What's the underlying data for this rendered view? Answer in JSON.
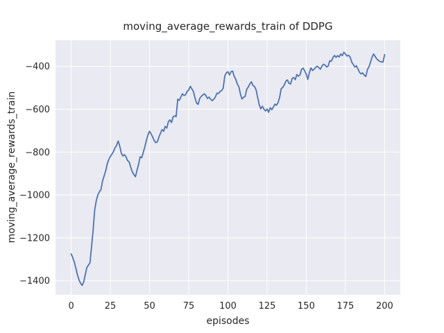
{
  "chart_data": {
    "type": "line",
    "title": "moving_average_rewards_train of DDPG",
    "xlabel": "episodes",
    "ylabel": "moving_average_rewards_train",
    "xlim": [
      -10,
      210
    ],
    "ylim": [
      -1466,
      -278
    ],
    "grid": true,
    "legend_position": "none",
    "style": "seaborn-darkgrid",
    "colors": {
      "line": "#4c72b0",
      "axes_background": "#eaeaf2",
      "grid": "#ffffff",
      "text": "#262626",
      "figure_background": "#ffffff"
    },
    "x_ticks": {
      "values": [
        0,
        25,
        50,
        75,
        100,
        125,
        150,
        175,
        200
      ],
      "labels": [
        "0",
        "25",
        "50",
        "75",
        "100",
        "125",
        "150",
        "175",
        "200"
      ]
    },
    "y_ticks": {
      "values": [
        -400,
        -600,
        -800,
        -1000,
        -1200,
        -1400
      ],
      "labels": [
        "−400",
        "−600",
        "−800",
        "−1000",
        "−1200",
        "−1400"
      ]
    },
    "series": [
      {
        "name": "moving_average_rewards_train",
        "color": "#4c72b0",
        "points": [
          [
            0,
            -1275
          ],
          [
            1,
            -1292
          ],
          [
            2,
            -1313
          ],
          [
            3,
            -1342
          ],
          [
            4,
            -1372
          ],
          [
            5,
            -1396
          ],
          [
            6,
            -1412
          ],
          [
            7,
            -1422
          ],
          [
            8,
            -1405
          ],
          [
            9,
            -1372
          ],
          [
            10,
            -1338
          ],
          [
            11,
            -1328
          ],
          [
            12,
            -1316
          ],
          [
            13,
            -1240
          ],
          [
            14,
            -1165
          ],
          [
            15,
            -1070
          ],
          [
            16,
            -1028
          ],
          [
            17,
            -1000
          ],
          [
            18,
            -985
          ],
          [
            19,
            -975
          ],
          [
            20,
            -935
          ],
          [
            21,
            -912
          ],
          [
            22,
            -888
          ],
          [
            23,
            -855
          ],
          [
            24,
            -835
          ],
          [
            25,
            -820
          ],
          [
            26,
            -810
          ],
          [
            27,
            -797
          ],
          [
            28,
            -780
          ],
          [
            29,
            -768
          ],
          [
            30,
            -748
          ],
          [
            31,
            -772
          ],
          [
            32,
            -805
          ],
          [
            33,
            -818
          ],
          [
            34,
            -812
          ],
          [
            35,
            -822
          ],
          [
            36,
            -840
          ],
          [
            37,
            -845
          ],
          [
            38,
            -870
          ],
          [
            39,
            -892
          ],
          [
            40,
            -905
          ],
          [
            41,
            -915
          ],
          [
            42,
            -885
          ],
          [
            43,
            -857
          ],
          [
            44,
            -822
          ],
          [
            45,
            -826
          ],
          [
            46,
            -802
          ],
          [
            47,
            -775
          ],
          [
            48,
            -745
          ],
          [
            49,
            -720
          ],
          [
            50,
            -703
          ],
          [
            51,
            -715
          ],
          [
            52,
            -730
          ],
          [
            53,
            -746
          ],
          [
            54,
            -756
          ],
          [
            55,
            -752
          ],
          [
            56,
            -730
          ],
          [
            57,
            -711
          ],
          [
            58,
            -695
          ],
          [
            59,
            -703
          ],
          [
            60,
            -680
          ],
          [
            61,
            -688
          ],
          [
            62,
            -658
          ],
          [
            63,
            -650
          ],
          [
            64,
            -662
          ],
          [
            65,
            -636
          ],
          [
            66,
            -631
          ],
          [
            67,
            -634
          ],
          [
            68,
            -553
          ],
          [
            69,
            -558
          ],
          [
            70,
            -543
          ],
          [
            71,
            -528
          ],
          [
            72,
            -536
          ],
          [
            73,
            -532
          ],
          [
            74,
            -517
          ],
          [
            75,
            -510
          ],
          [
            76,
            -493
          ],
          [
            77,
            -505
          ],
          [
            78,
            -517
          ],
          [
            79,
            -548
          ],
          [
            80,
            -571
          ],
          [
            81,
            -577
          ],
          [
            82,
            -550
          ],
          [
            83,
            -540
          ],
          [
            84,
            -533
          ],
          [
            85,
            -528
          ],
          [
            86,
            -537
          ],
          [
            87,
            -550
          ],
          [
            88,
            -543
          ],
          [
            89,
            -553
          ],
          [
            90,
            -560
          ],
          [
            91,
            -553
          ],
          [
            92,
            -543
          ],
          [
            93,
            -525
          ],
          [
            94,
            -527
          ],
          [
            95,
            -517
          ],
          [
            96,
            -513
          ],
          [
            97,
            -501
          ],
          [
            98,
            -445
          ],
          [
            99,
            -430
          ],
          [
            100,
            -425
          ],
          [
            101,
            -440
          ],
          [
            102,
            -425
          ],
          [
            103,
            -422
          ],
          [
            104,
            -446
          ],
          [
            105,
            -460
          ],
          [
            106,
            -483
          ],
          [
            107,
            -495
          ],
          [
            108,
            -530
          ],
          [
            109,
            -552
          ],
          [
            110,
            -544
          ],
          [
            111,
            -540
          ],
          [
            112,
            -507
          ],
          [
            113,
            -496
          ],
          [
            114,
            -482
          ],
          [
            115,
            -472
          ],
          [
            116,
            -489
          ],
          [
            117,
            -494
          ],
          [
            118,
            -510
          ],
          [
            119,
            -545
          ],
          [
            120,
            -579
          ],
          [
            121,
            -598
          ],
          [
            122,
            -586
          ],
          [
            123,
            -600
          ],
          [
            124,
            -608
          ],
          [
            125,
            -599
          ],
          [
            126,
            -614
          ],
          [
            127,
            -593
          ],
          [
            128,
            -602
          ],
          [
            129,
            -590
          ],
          [
            130,
            -576
          ],
          [
            131,
            -581
          ],
          [
            132,
            -569
          ],
          [
            133,
            -544
          ],
          [
            134,
            -504
          ],
          [
            135,
            -498
          ],
          [
            136,
            -486
          ],
          [
            137,
            -469
          ],
          [
            138,
            -463
          ],
          [
            139,
            -479
          ],
          [
            140,
            -482
          ],
          [
            141,
            -456
          ],
          [
            142,
            -452
          ],
          [
            143,
            -462
          ],
          [
            144,
            -438
          ],
          [
            145,
            -446
          ],
          [
            146,
            -440
          ],
          [
            147,
            -414
          ],
          [
            148,
            -408
          ],
          [
            149,
            -421
          ],
          [
            150,
            -437
          ],
          [
            151,
            -461
          ],
          [
            152,
            -428
          ],
          [
            153,
            -407
          ],
          [
            154,
            -419
          ],
          [
            155,
            -413
          ],
          [
            156,
            -405
          ],
          [
            157,
            -399
          ],
          [
            158,
            -406
          ],
          [
            159,
            -413
          ],
          [
            160,
            -399
          ],
          [
            161,
            -390
          ],
          [
            162,
            -394
          ],
          [
            163,
            -403
          ],
          [
            164,
            -398
          ],
          [
            165,
            -374
          ],
          [
            166,
            -376
          ],
          [
            167,
            -359
          ],
          [
            168,
            -349
          ],
          [
            169,
            -358
          ],
          [
            170,
            -350
          ],
          [
            171,
            -356
          ],
          [
            172,
            -342
          ],
          [
            173,
            -350
          ],
          [
            174,
            -334
          ],
          [
            175,
            -342
          ],
          [
            176,
            -352
          ],
          [
            177,
            -348
          ],
          [
            178,
            -356
          ],
          [
            179,
            -380
          ],
          [
            180,
            -391
          ],
          [
            181,
            -403
          ],
          [
            182,
            -397
          ],
          [
            183,
            -412
          ],
          [
            184,
            -428
          ],
          [
            185,
            -435
          ],
          [
            186,
            -430
          ],
          [
            187,
            -441
          ],
          [
            188,
            -447
          ],
          [
            189,
            -415
          ],
          [
            190,
            -402
          ],
          [
            191,
            -380
          ],
          [
            192,
            -357
          ],
          [
            193,
            -342
          ],
          [
            194,
            -355
          ],
          [
            195,
            -365
          ],
          [
            196,
            -372
          ],
          [
            197,
            -377
          ],
          [
            198,
            -379
          ],
          [
            199,
            -380
          ],
          [
            200,
            -345
          ]
        ]
      }
    ]
  }
}
